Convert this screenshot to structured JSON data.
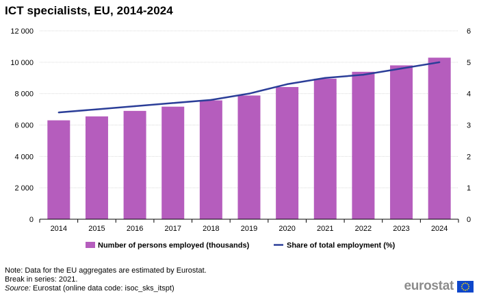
{
  "title": "ICT specialists,  EU, 2014-2024",
  "colors": {
    "bars": "#b55dbd",
    "line": "#2b3e98",
    "grid": "#d9d9d9",
    "axis": "#000000"
  },
  "chart_data": {
    "type": "bar",
    "categories": [
      "2014",
      "2015",
      "2016",
      "2017",
      "2018",
      "2019",
      "2020",
      "2021",
      "2022",
      "2023",
      "2024"
    ],
    "series": [
      {
        "name": "Number of persons employed (thousands)",
        "type": "bar",
        "axis": "left",
        "values": [
          6300,
          6550,
          6900,
          7170,
          7570,
          7880,
          8420,
          8950,
          9390,
          9800,
          10290
        ]
      },
      {
        "name": "Share of total employment (%)",
        "type": "line",
        "axis": "right",
        "values": [
          3.4,
          3.5,
          3.6,
          3.7,
          3.8,
          4.0,
          4.3,
          4.5,
          4.6,
          4.8,
          5.0
        ]
      }
    ],
    "y_left": {
      "min": 0,
      "max": 12000,
      "ticks": [
        0,
        2000,
        4000,
        6000,
        8000,
        10000,
        12000
      ],
      "tick_labels": [
        "0",
        "2 000",
        "4 000",
        "6 000",
        "8 000",
        "10 000",
        "12 000"
      ]
    },
    "y_right": {
      "min": 0,
      "max": 6,
      "ticks": [
        0,
        1,
        2,
        3,
        4,
        5,
        6
      ],
      "tick_labels": [
        "0",
        "1",
        "2",
        "3",
        "4",
        "5",
        "6"
      ]
    },
    "legend": [
      "Number of persons employed (thousands)",
      "Share of total employment (%)"
    ],
    "grid": true,
    "legend_position": "bottom"
  },
  "notes": {
    "line1": "Note: Data for the EU aggregates are estimated by Eurostat.",
    "line2": "Break in series: 2021.",
    "source_label": "Source:",
    "source_text": " Eurostat (online data code: isoc_sks_itspt)"
  },
  "brand": {
    "name": "eurostat",
    "logo_icon": "eu-flag-icon"
  }
}
